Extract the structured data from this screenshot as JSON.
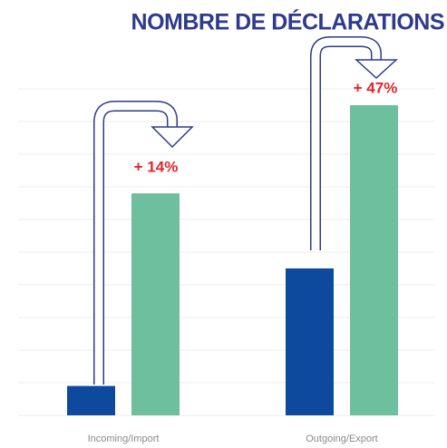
{
  "chart_data": {
    "type": "bar",
    "title": "NOMBRE DE DÉCLARATIONS",
    "categories": [
      "Incoming/Import",
      "Outgoing/Export"
    ],
    "series": [
      {
        "color": "#0d4a9e",
        "values": [
          0.9,
          4.5
        ]
      },
      {
        "color": "#6dbf9e",
        "values": [
          6.8,
          9.5
        ]
      }
    ],
    "annotations": [
      "+ 14%",
      "+ 47%"
    ],
    "ylim": [
      0,
      10
    ],
    "yticks": [
      0,
      1,
      2,
      3,
      4,
      5,
      6,
      7,
      8,
      9,
      10
    ],
    "grid": true
  }
}
